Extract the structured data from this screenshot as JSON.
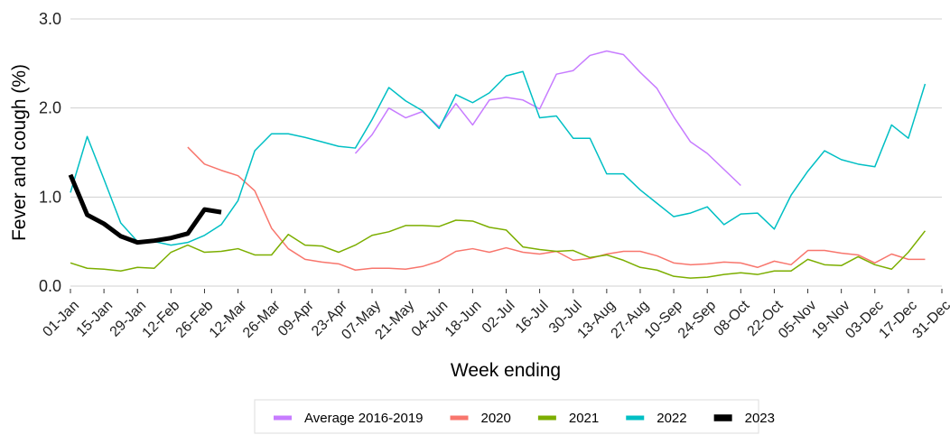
{
  "chart_data": {
    "type": "line",
    "x_label": "Week ending",
    "y_label": "Fever and cough (%)",
    "x": [
      0,
      7,
      14,
      21,
      28,
      35,
      42,
      49,
      56,
      63,
      70,
      77,
      84,
      91,
      98,
      105,
      112,
      119,
      126,
      133,
      140,
      147,
      154,
      161,
      168,
      175,
      182,
      189,
      196,
      203,
      210,
      217,
      224,
      231,
      238,
      245,
      252,
      259,
      266,
      273,
      280,
      287,
      294,
      301,
      308,
      315,
      322,
      329,
      336,
      343,
      350,
      357,
      364
    ],
    "xlim": [
      0,
      364
    ],
    "xticks": [
      {
        "value": 0,
        "label": "01-Jan"
      },
      {
        "value": 14,
        "label": "15-Jan"
      },
      {
        "value": 28,
        "label": "29-Jan"
      },
      {
        "value": 42,
        "label": "12-Feb"
      },
      {
        "value": 56,
        "label": "26-Feb"
      },
      {
        "value": 70,
        "label": "12-Mar"
      },
      {
        "value": 84,
        "label": "26-Mar"
      },
      {
        "value": 98,
        "label": "09-Apr"
      },
      {
        "value": 112,
        "label": "23-Apr"
      },
      {
        "value": 126,
        "label": "07-May"
      },
      {
        "value": 140,
        "label": "21-May"
      },
      {
        "value": 154,
        "label": "04-Jun"
      },
      {
        "value": 168,
        "label": "18-Jun"
      },
      {
        "value": 182,
        "label": "02-Jul"
      },
      {
        "value": 196,
        "label": "16-Jul"
      },
      {
        "value": 210,
        "label": "30-Jul"
      },
      {
        "value": 224,
        "label": "13-Aug"
      },
      {
        "value": 238,
        "label": "27-Aug"
      },
      {
        "value": 252,
        "label": "10-Sep"
      },
      {
        "value": 266,
        "label": "24-Sep"
      },
      {
        "value": 280,
        "label": "08-Oct"
      },
      {
        "value": 294,
        "label": "22-Oct"
      },
      {
        "value": 308,
        "label": "05-Nov"
      },
      {
        "value": 322,
        "label": "19-Nov"
      },
      {
        "value": 336,
        "label": "03-Dec"
      },
      {
        "value": 350,
        "label": "17-Dec"
      },
      {
        "value": 364,
        "label": "31-Dec"
      }
    ],
    "ylim": [
      0,
      3
    ],
    "yticks": [
      {
        "value": 0,
        "label": "0.0"
      },
      {
        "value": 1,
        "label": "1.0"
      },
      {
        "value": 2,
        "label": "2.0"
      },
      {
        "value": 3,
        "label": "3.0"
      }
    ],
    "grid": true,
    "legend": "bottom",
    "series": [
      {
        "name": "Average 2016-2019",
        "color": "#C77CFF",
        "width": 1.5,
        "values": [
          null,
          null,
          null,
          null,
          null,
          null,
          null,
          null,
          null,
          null,
          null,
          null,
          null,
          null,
          null,
          null,
          null,
          1.49,
          1.7,
          2.0,
          1.89,
          1.96,
          1.79,
          2.05,
          1.81,
          2.09,
          2.12,
          2.09,
          1.99,
          2.38,
          2.42,
          2.59,
          2.64,
          2.6,
          2.4,
          2.22,
          1.9,
          1.62,
          1.49,
          1.31,
          1.13,
          null,
          null,
          null,
          null,
          null,
          null,
          null,
          null,
          null,
          null,
          null,
          null
        ]
      },
      {
        "name": "2020",
        "color": "#F8766D",
        "width": 1.5,
        "values": [
          null,
          null,
          null,
          null,
          null,
          null,
          null,
          1.56,
          1.37,
          1.3,
          1.24,
          1.07,
          0.65,
          0.42,
          0.3,
          0.27,
          0.25,
          0.18,
          0.2,
          0.2,
          0.19,
          0.22,
          0.28,
          0.39,
          0.42,
          0.38,
          0.43,
          0.38,
          0.36,
          0.39,
          0.29,
          0.31,
          0.36,
          0.39,
          0.39,
          0.34,
          0.26,
          0.24,
          0.25,
          0.27,
          0.26,
          0.21,
          0.28,
          0.24,
          0.4,
          0.4,
          0.37,
          0.35,
          0.26,
          0.36,
          0.3,
          0.3,
          null
        ]
      },
      {
        "name": "2021",
        "color": "#7CAE00",
        "width": 1.5,
        "values": [
          0.26,
          0.2,
          0.19,
          0.17,
          0.21,
          0.2,
          0.38,
          0.46,
          0.38,
          0.39,
          0.42,
          0.35,
          0.35,
          0.58,
          0.46,
          0.45,
          0.38,
          0.46,
          0.57,
          0.61,
          0.68,
          0.68,
          0.67,
          0.74,
          0.73,
          0.66,
          0.63,
          0.44,
          0.41,
          0.39,
          0.4,
          0.32,
          0.35,
          0.29,
          0.21,
          0.18,
          0.11,
          0.09,
          0.1,
          0.13,
          0.15,
          0.13,
          0.17,
          0.17,
          0.3,
          0.24,
          0.23,
          0.33,
          0.24,
          0.19,
          0.38,
          0.62,
          null
        ]
      },
      {
        "name": "2022",
        "color": "#00BFC4",
        "width": 1.5,
        "values": [
          1.05,
          1.68,
          1.2,
          0.71,
          0.5,
          0.5,
          0.46,
          0.49,
          0.57,
          0.69,
          0.96,
          1.52,
          1.71,
          1.71,
          1.67,
          1.62,
          1.57,
          1.55,
          1.87,
          2.23,
          2.08,
          1.97,
          1.77,
          2.15,
          2.06,
          2.17,
          2.36,
          2.41,
          1.89,
          1.91,
          1.66,
          1.66,
          1.26,
          1.26,
          1.08,
          0.93,
          0.78,
          0.82,
          0.89,
          0.69,
          0.81,
          0.82,
          0.64,
          1.02,
          1.29,
          1.52,
          1.42,
          1.37,
          1.34,
          1.81,
          1.66,
          2.27,
          null
        ]
      },
      {
        "name": "2023",
        "color": "#000000",
        "width": 5,
        "values": [
          1.25,
          0.8,
          0.7,
          0.56,
          0.49,
          0.51,
          0.54,
          0.59,
          0.86,
          0.83,
          null,
          null,
          null,
          null,
          null,
          null,
          null,
          null,
          null,
          null,
          null,
          null,
          null,
          null,
          null,
          null,
          null,
          null,
          null,
          null,
          null,
          null,
          null,
          null,
          null,
          null,
          null,
          null,
          null,
          null,
          null,
          null,
          null,
          null,
          null,
          null,
          null,
          null,
          null,
          null,
          null,
          null,
          null
        ]
      }
    ]
  }
}
